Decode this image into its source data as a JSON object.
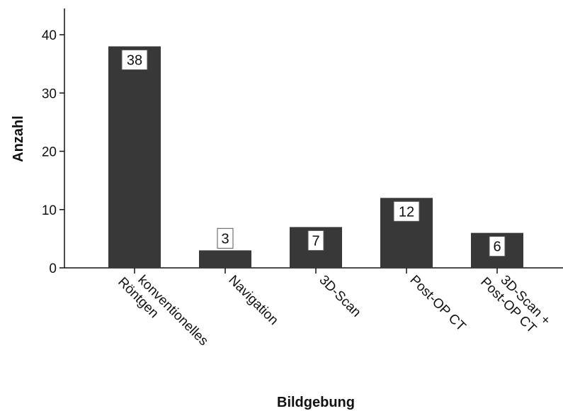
{
  "chart_data": {
    "type": "bar",
    "categories": [
      [
        "konventionelles",
        "Röntgen"
      ],
      [
        "Navigation"
      ],
      [
        "3D-Scan"
      ],
      [
        "Post-OP CT"
      ],
      [
        "3D-Scan +",
        "Post-OP CT"
      ]
    ],
    "values": [
      38,
      3,
      7,
      12,
      6
    ],
    "data_labels": [
      "38",
      "3",
      "7",
      "12",
      "6"
    ],
    "xlabel": "Bildgebung",
    "ylabel": "Anzahl",
    "ylim": [
      0,
      40
    ],
    "yticks": [
      0,
      10,
      20,
      30,
      40
    ],
    "ytick_labels": [
      "0",
      "10",
      "20",
      "30",
      "40"
    ],
    "grid": false,
    "bar_color": "#383838"
  }
}
